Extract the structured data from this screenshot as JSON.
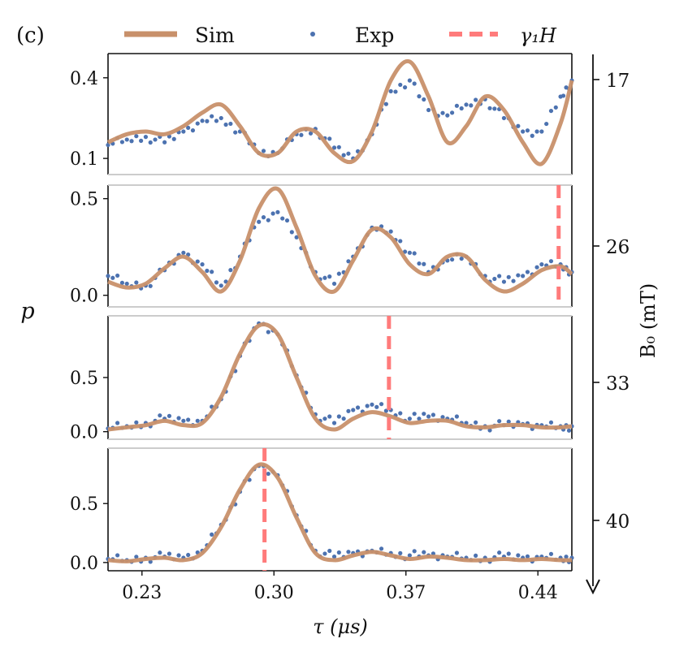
{
  "panel_label": "(c)",
  "y_axis_label": "p",
  "x_axis_label": "τ (μs)",
  "right_axis_label": "B₀ (mT)",
  "legend": {
    "sim": "Sim",
    "exp": "Exp",
    "gamma": "γ₁H"
  },
  "colors": {
    "sim": "#c8906a",
    "exp": "#4c72b0",
    "gamma": "#ff7b7b"
  },
  "chart_data": [
    {
      "type": "line",
      "B0_mT": "17",
      "xlim": [
        0.212,
        0.458
      ],
      "ylim": [
        0.04,
        0.49
      ],
      "yticks": [
        "0.1",
        "0.4"
      ],
      "ytick_values": [
        0.1,
        0.4
      ],
      "gamma_x": null,
      "series": [
        {
          "name": "Sim",
          "x": [
            0.212,
            0.222,
            0.232,
            0.242,
            0.252,
            0.262,
            0.272,
            0.282,
            0.292,
            0.302,
            0.312,
            0.322,
            0.332,
            0.342,
            0.352,
            0.362,
            0.372,
            0.382,
            0.392,
            0.402,
            0.412,
            0.422,
            0.432,
            0.442,
            0.452,
            0.458
          ],
          "y": [
            0.16,
            0.19,
            0.2,
            0.19,
            0.22,
            0.27,
            0.3,
            0.22,
            0.12,
            0.12,
            0.2,
            0.2,
            0.12,
            0.09,
            0.2,
            0.39,
            0.46,
            0.33,
            0.16,
            0.22,
            0.33,
            0.28,
            0.16,
            0.08,
            0.23,
            0.39
          ]
        },
        {
          "name": "Exp",
          "x": [
            0.212,
            0.222,
            0.232,
            0.242,
            0.252,
            0.262,
            0.272,
            0.282,
            0.292,
            0.302,
            0.312,
            0.322,
            0.332,
            0.342,
            0.352,
            0.362,
            0.372,
            0.382,
            0.392,
            0.402,
            0.412,
            0.422,
            0.432,
            0.442,
            0.452,
            0.458
          ],
          "y": [
            0.15,
            0.17,
            0.18,
            0.16,
            0.2,
            0.24,
            0.25,
            0.2,
            0.12,
            0.12,
            0.19,
            0.21,
            0.14,
            0.1,
            0.19,
            0.35,
            0.39,
            0.28,
            0.26,
            0.3,
            0.32,
            0.25,
            0.2,
            0.2,
            0.33,
            0.39
          ]
        }
      ]
    },
    {
      "type": "line",
      "B0_mT": "26",
      "xlim": [
        0.212,
        0.458
      ],
      "ylim": [
        -0.06,
        0.57
      ],
      "yticks": [
        "0.0",
        "0.5"
      ],
      "ytick_values": [
        0.0,
        0.5
      ],
      "gamma_x": 0.451,
      "series": [
        {
          "name": "Sim",
          "x": [
            0.212,
            0.222,
            0.232,
            0.242,
            0.252,
            0.262,
            0.272,
            0.282,
            0.292,
            0.302,
            0.312,
            0.322,
            0.332,
            0.342,
            0.352,
            0.362,
            0.372,
            0.382,
            0.392,
            0.402,
            0.412,
            0.422,
            0.432,
            0.442,
            0.452,
            0.458
          ],
          "y": [
            0.07,
            0.04,
            0.06,
            0.14,
            0.2,
            0.12,
            0.02,
            0.18,
            0.45,
            0.55,
            0.35,
            0.1,
            0.02,
            0.18,
            0.34,
            0.3,
            0.16,
            0.11,
            0.2,
            0.2,
            0.08,
            0.02,
            0.06,
            0.13,
            0.15,
            0.11
          ]
        },
        {
          "name": "Exp",
          "x": [
            0.212,
            0.222,
            0.232,
            0.242,
            0.252,
            0.262,
            0.272,
            0.282,
            0.292,
            0.302,
            0.312,
            0.322,
            0.332,
            0.342,
            0.352,
            0.362,
            0.372,
            0.382,
            0.392,
            0.402,
            0.412,
            0.422,
            0.432,
            0.442,
            0.452,
            0.458
          ],
          "y": [
            0.1,
            0.06,
            0.05,
            0.13,
            0.22,
            0.16,
            0.05,
            0.2,
            0.38,
            0.43,
            0.3,
            0.12,
            0.06,
            0.2,
            0.35,
            0.33,
            0.22,
            0.12,
            0.18,
            0.2,
            0.1,
            0.07,
            0.1,
            0.16,
            0.16,
            0.12
          ]
        }
      ]
    },
    {
      "type": "line",
      "B0_mT": "33",
      "xlim": [
        0.212,
        0.458
      ],
      "ylim": [
        -0.07,
        1.07
      ],
      "yticks": [
        "0.0",
        "0.5"
      ],
      "ytick_values": [
        0.0,
        0.5
      ],
      "gamma_x": 0.361,
      "series": [
        {
          "name": "Sim",
          "x": [
            0.212,
            0.222,
            0.232,
            0.242,
            0.252,
            0.262,
            0.272,
            0.282,
            0.292,
            0.302,
            0.312,
            0.322,
            0.332,
            0.342,
            0.352,
            0.362,
            0.372,
            0.382,
            0.392,
            0.402,
            0.412,
            0.422,
            0.432,
            0.442,
            0.452,
            0.458
          ],
          "y": [
            0.02,
            0.04,
            0.06,
            0.1,
            0.06,
            0.08,
            0.32,
            0.72,
            0.98,
            0.9,
            0.5,
            0.12,
            0.02,
            0.12,
            0.18,
            0.14,
            0.08,
            0.1,
            0.1,
            0.05,
            0.04,
            0.06,
            0.06,
            0.04,
            0.04,
            0.05
          ]
        },
        {
          "name": "Exp",
          "x": [
            0.212,
            0.222,
            0.232,
            0.242,
            0.252,
            0.262,
            0.272,
            0.282,
            0.292,
            0.302,
            0.312,
            0.322,
            0.332,
            0.342,
            0.352,
            0.362,
            0.372,
            0.382,
            0.392,
            0.402,
            0.412,
            0.422,
            0.432,
            0.442,
            0.452,
            0.458
          ],
          "y": [
            0.03,
            0.05,
            0.08,
            0.12,
            0.1,
            0.1,
            0.3,
            0.7,
            1.0,
            0.9,
            0.52,
            0.16,
            0.08,
            0.2,
            0.25,
            0.2,
            0.12,
            0.14,
            0.12,
            0.08,
            0.05,
            0.06,
            0.07,
            0.06,
            0.05,
            0.05
          ]
        }
      ]
    },
    {
      "type": "line",
      "B0_mT": "40",
      "xlim": [
        0.212,
        0.458
      ],
      "ylim": [
        -0.07,
        0.97
      ],
      "yticks": [
        "0.0",
        "0.5"
      ],
      "ytick_values": [
        0.0,
        0.5
      ],
      "gamma_x": 0.295,
      "series": [
        {
          "name": "Sim",
          "x": [
            0.212,
            0.222,
            0.232,
            0.242,
            0.252,
            0.262,
            0.272,
            0.282,
            0.292,
            0.302,
            0.312,
            0.322,
            0.332,
            0.342,
            0.352,
            0.362,
            0.372,
            0.382,
            0.392,
            0.402,
            0.412,
            0.422,
            0.432,
            0.442,
            0.452,
            0.458
          ],
          "y": [
            0.02,
            0.01,
            0.03,
            0.04,
            0.02,
            0.08,
            0.3,
            0.62,
            0.83,
            0.72,
            0.38,
            0.08,
            0.02,
            0.06,
            0.09,
            0.06,
            0.03,
            0.05,
            0.04,
            0.02,
            0.02,
            0.03,
            0.02,
            0.03,
            0.02,
            0.02
          ]
        },
        {
          "name": "Exp",
          "x": [
            0.212,
            0.222,
            0.232,
            0.242,
            0.252,
            0.262,
            0.272,
            0.282,
            0.292,
            0.302,
            0.312,
            0.322,
            0.332,
            0.342,
            0.352,
            0.362,
            0.372,
            0.382,
            0.392,
            0.402,
            0.412,
            0.422,
            0.432,
            0.442,
            0.452,
            0.458
          ],
          "y": [
            0.03,
            0.02,
            0.04,
            0.05,
            0.04,
            0.1,
            0.32,
            0.6,
            0.82,
            0.74,
            0.4,
            0.1,
            0.05,
            0.08,
            0.1,
            0.08,
            0.06,
            0.06,
            0.05,
            0.04,
            0.04,
            0.05,
            0.04,
            0.05,
            0.04,
            0.04
          ]
        }
      ]
    }
  ],
  "xticks": [
    "0.23",
    "0.30",
    "0.37",
    "0.44"
  ],
  "xtick_values": [
    0.23,
    0.3,
    0.37,
    0.44
  ]
}
